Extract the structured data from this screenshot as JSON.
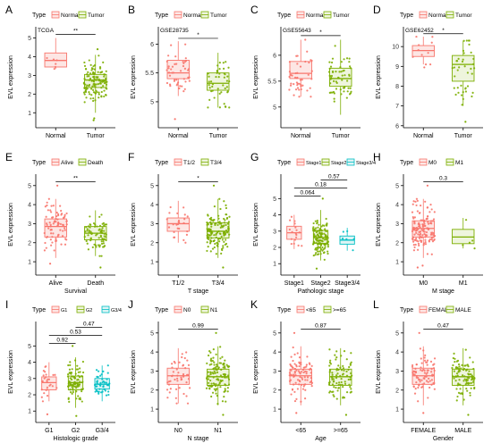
{
  "colors": {
    "red": "#F8766D",
    "green": "#7CAE00",
    "teal": "#00BFC4",
    "box_fill_red": "#FDE6E4",
    "box_fill_green": "#EEF5DD",
    "box_fill_teal": "#DDF4F5",
    "axis": "#000000"
  },
  "chart_data": [
    {
      "panel_letter": "A",
      "type": "box",
      "subtitle": "TCGA",
      "legend_title": "Type",
      "legend": [
        "Normal",
        "Tumor"
      ],
      "ylabel": "EVL expression",
      "xlabel": "",
      "categories": [
        "Normal",
        "Tumor"
      ],
      "yticks": [
        1,
        2,
        3,
        4,
        5
      ],
      "ylim": [
        0.2,
        5.6
      ],
      "colors": [
        "red",
        "green"
      ],
      "boxes": [
        {
          "min": 3.35,
          "q1": 3.45,
          "median": 3.8,
          "q3": 4.2,
          "max": 5.0,
          "n": 6,
          "outliers": []
        },
        {
          "min": 1.0,
          "q1": 2.35,
          "median": 2.75,
          "q3": 3.05,
          "max": 4.1,
          "n": 120,
          "outliers": [
            0.6,
            0.7,
            4.4
          ]
        }
      ],
      "comparisons": [
        {
          "pair": [
            0,
            1
          ],
          "label": "**",
          "y": 5.2
        }
      ]
    },
    {
      "panel_letter": "B",
      "type": "box",
      "subtitle": "GSE28735",
      "legend_title": "Type",
      "legend": [
        "Normal",
        "Tumor"
      ],
      "ylabel": "EVL expression",
      "xlabel": "",
      "categories": [
        "Normal",
        "Tumor"
      ],
      "yticks": [
        5.0,
        5.5,
        6.0
      ],
      "ylim": [
        4.55,
        6.3
      ],
      "colors": [
        "red",
        "green"
      ],
      "boxes": [
        {
          "min": 5.1,
          "q1": 5.4,
          "median": 5.5,
          "q3": 5.72,
          "max": 6.05,
          "n": 45,
          "outliers": [
            4.7
          ]
        },
        {
          "min": 4.9,
          "q1": 5.2,
          "median": 5.32,
          "q3": 5.5,
          "max": 5.85,
          "n": 45,
          "outliers": []
        }
      ],
      "comparisons": [
        {
          "pair": [
            0,
            1
          ],
          "label": "*",
          "y": 6.1
        }
      ]
    },
    {
      "panel_letter": "C",
      "type": "box",
      "subtitle": "GSE55643",
      "legend_title": "Type",
      "legend": [
        "Normal",
        "Tumor"
      ],
      "ylabel": "EVL expression",
      "xlabel": "",
      "categories": [
        "Normal",
        "Tumor"
      ],
      "yticks": [
        5.0,
        5.5,
        6.0
      ],
      "ylim": [
        4.6,
        6.55
      ],
      "colors": [
        "red",
        "green"
      ],
      "boxes": [
        {
          "min": 5.2,
          "q1": 5.55,
          "median": 5.65,
          "q3": 5.88,
          "max": 6.3,
          "n": 45,
          "outliers": []
        },
        {
          "min": 4.85,
          "q1": 5.4,
          "median": 5.55,
          "q3": 5.75,
          "max": 6.3,
          "n": 60,
          "outliers": []
        }
      ],
      "comparisons": [
        {
          "pair": [
            0,
            1
          ],
          "label": "*",
          "y": 6.38
        }
      ]
    },
    {
      "panel_letter": "D",
      "type": "box",
      "subtitle": "GSE62452",
      "legend_title": "Type",
      "legend": [
        "Normal",
        "Tumor"
      ],
      "ylabel": "EVL expression",
      "xlabel": "",
      "categories": [
        "Normal",
        "Tumor"
      ],
      "yticks": [
        6,
        7,
        8,
        9,
        10
      ],
      "ylim": [
        5.9,
        11.0
      ],
      "colors": [
        "red",
        "green"
      ],
      "boxes": [
        {
          "min": 9.1,
          "q1": 9.5,
          "median": 9.8,
          "q3": 10.05,
          "max": 10.5,
          "n": 10,
          "outliers": [
            8.95
          ]
        },
        {
          "min": 7.0,
          "q1": 8.25,
          "median": 9.1,
          "q3": 9.55,
          "max": 10.3,
          "n": 40,
          "outliers": [
            6.2
          ]
        }
      ],
      "comparisons": [
        {
          "pair": [
            0,
            1
          ],
          "label": "*",
          "y": 10.65
        }
      ]
    },
    {
      "panel_letter": "E",
      "type": "box",
      "subtitle": "",
      "legend_title": "Type",
      "legend": [
        "Alive",
        "Death"
      ],
      "ylabel": "EVL expression",
      "xlabel": "Survival",
      "categories": [
        "Alive",
        "Death"
      ],
      "yticks": [
        1,
        2,
        3,
        4,
        5
      ],
      "ylim": [
        0.3,
        5.6
      ],
      "colors": [
        "red",
        "green"
      ],
      "boxes": [
        {
          "min": 1.2,
          "q1": 2.3,
          "median": 2.85,
          "q3": 3.25,
          "max": 4.3,
          "n": 80,
          "outliers": [
            0.9,
            5.0
          ]
        },
        {
          "min": 1.3,
          "q1": 2.15,
          "median": 2.5,
          "q3": 2.85,
          "max": 3.7,
          "n": 75,
          "outliers": [
            0.7
          ]
        }
      ],
      "comparisons": [
        {
          "pair": [
            0,
            1
          ],
          "label": "**",
          "y": 5.2
        }
      ]
    },
    {
      "panel_letter": "F",
      "type": "box",
      "subtitle": "",
      "legend_title": "Type",
      "legend": [
        "T1/2",
        "T3/4"
      ],
      "ylabel": "EVL expression",
      "xlabel": "T stage",
      "categories": [
        "T1/2",
        "T3/4"
      ],
      "yticks": [
        1,
        2,
        3,
        4,
        5
      ],
      "ylim": [
        0.3,
        5.6
      ],
      "colors": [
        "red",
        "green"
      ],
      "boxes": [
        {
          "min": 2.0,
          "q1": 2.6,
          "median": 3.0,
          "q3": 3.3,
          "max": 4.2,
          "n": 25,
          "outliers": []
        },
        {
          "min": 1.2,
          "q1": 2.25,
          "median": 2.6,
          "q3": 3.05,
          "max": 4.3,
          "n": 130,
          "outliers": [
            0.7,
            5.0
          ]
        }
      ],
      "comparisons": [
        {
          "pair": [
            0,
            1
          ],
          "label": "*",
          "y": 5.2
        }
      ]
    },
    {
      "panel_letter": "G",
      "type": "box",
      "subtitle": "",
      "legend_title": "Type",
      "legend": [
        "Stage1",
        "Stage2",
        "Stage3/4"
      ],
      "ylabel": "EVL expression",
      "xlabel": "Pathologic stage",
      "categories": [
        "Stage1",
        "Stage2",
        "Stage3/4"
      ],
      "yticks": [
        1,
        2,
        3,
        4,
        5
      ],
      "ylim": [
        0.3,
        6.5
      ],
      "colors": [
        "red",
        "green",
        "teal"
      ],
      "boxes": [
        {
          "min": 1.9,
          "q1": 2.5,
          "median": 2.9,
          "q3": 3.3,
          "max": 4.0,
          "n": 18,
          "outliers": []
        },
        {
          "min": 1.2,
          "q1": 2.25,
          "median": 2.6,
          "q3": 3.05,
          "max": 4.3,
          "n": 130,
          "outliers": [
            0.7,
            5.0
          ]
        },
        {
          "min": 1.8,
          "q1": 2.2,
          "median": 2.45,
          "q3": 2.7,
          "max": 3.2,
          "n": 6,
          "outliers": []
        }
      ],
      "comparisons": [
        {
          "pair": [
            0,
            1
          ],
          "label": "0.064",
          "y": 5.15
        },
        {
          "pair": [
            0,
            2
          ],
          "label": "0.18",
          "y": 5.65
        },
        {
          "pair": [
            1,
            2
          ],
          "label": "0.57",
          "y": 6.15
        }
      ]
    },
    {
      "panel_letter": "H",
      "type": "box",
      "subtitle": "",
      "legend_title": "Type",
      "legend": [
        "M0",
        "M1"
      ],
      "ylabel": "EVL expression",
      "xlabel": "M stage",
      "categories": [
        "M0",
        "M1"
      ],
      "yticks": [
        1,
        2,
        3,
        4,
        5
      ],
      "ylim": [
        0.3,
        5.6
      ],
      "colors": [
        "red",
        "green"
      ],
      "boxes": [
        {
          "min": 1.2,
          "q1": 2.3,
          "median": 2.75,
          "q3": 3.15,
          "max": 4.3,
          "n": 140,
          "outliers": [
            0.7,
            0.8,
            5.0
          ]
        },
        {
          "min": 1.7,
          "q1": 1.95,
          "median": 2.3,
          "q3": 2.7,
          "max": 3.3,
          "n": 5,
          "outliers": []
        }
      ],
      "comparisons": [
        {
          "pair": [
            0,
            1
          ],
          "label": "0.3",
          "y": 5.2
        }
      ]
    },
    {
      "panel_letter": "I",
      "type": "box",
      "subtitle": "",
      "legend_title": "Type",
      "legend": [
        "G1",
        "G2",
        "G3/4"
      ],
      "ylabel": "EVL expression",
      "xlabel": "Histologic grade",
      "categories": [
        "G1",
        "G2",
        "G3/4"
      ],
      "yticks": [
        1,
        2,
        3,
        4,
        5
      ],
      "ylim": [
        0.3,
        6.5
      ],
      "colors": [
        "red",
        "green",
        "teal"
      ],
      "boxes": [
        {
          "min": 1.6,
          "q1": 2.3,
          "median": 2.75,
          "q3": 3.1,
          "max": 4.0,
          "n": 28,
          "outliers": [
            0.8
          ]
        },
        {
          "min": 1.2,
          "q1": 2.3,
          "median": 2.75,
          "q3": 3.15,
          "max": 4.3,
          "n": 90,
          "outliers": [
            0.7,
            5.0
          ]
        },
        {
          "min": 1.6,
          "q1": 2.35,
          "median": 2.65,
          "q3": 3.0,
          "max": 3.8,
          "n": 45,
          "outliers": []
        }
      ],
      "comparisons": [
        {
          "pair": [
            0,
            1
          ],
          "label": "0.92",
          "y": 5.15
        },
        {
          "pair": [
            0,
            2
          ],
          "label": "0.53",
          "y": 5.65
        },
        {
          "pair": [
            1,
            2
          ],
          "label": "0.47",
          "y": 6.15
        }
      ]
    },
    {
      "panel_letter": "J",
      "type": "box",
      "subtitle": "",
      "legend_title": "Type",
      "legend": [
        "N0",
        "N1"
      ],
      "ylabel": "EVL expression",
      "xlabel": "N stage",
      "categories": [
        "N0",
        "N1"
      ],
      "yticks": [
        1,
        2,
        3,
        4,
        5
      ],
      "ylim": [
        0.3,
        5.6
      ],
      "colors": [
        "red",
        "green"
      ],
      "boxes": [
        {
          "min": 1.3,
          "q1": 2.3,
          "median": 2.75,
          "q3": 3.15,
          "max": 4.2,
          "n": 50,
          "outliers": []
        },
        {
          "min": 1.2,
          "q1": 2.25,
          "median": 2.7,
          "q3": 3.1,
          "max": 4.3,
          "n": 120,
          "outliers": [
            0.7,
            5.0
          ]
        }
      ],
      "comparisons": [
        {
          "pair": [
            0,
            1
          ],
          "label": "0.99",
          "y": 5.2
        }
      ]
    },
    {
      "panel_letter": "K",
      "type": "box",
      "subtitle": "",
      "legend_title": "Type",
      "legend": [
        "<65",
        ">=65"
      ],
      "ylabel": "EVL expression",
      "xlabel": "Age",
      "categories": [
        "<65",
        ">=65"
      ],
      "yticks": [
        1,
        2,
        3,
        4,
        5
      ],
      "ylim": [
        0.3,
        5.6
      ],
      "colors": [
        "red",
        "green"
      ],
      "boxes": [
        {
          "min": 1.2,
          "q1": 2.3,
          "median": 2.75,
          "q3": 3.1,
          "max": 4.3,
          "n": 90,
          "outliers": [
            0.8,
            5.0
          ]
        },
        {
          "min": 1.2,
          "q1": 2.25,
          "median": 2.7,
          "q3": 3.1,
          "max": 4.2,
          "n": 85,
          "outliers": [
            0.7
          ]
        }
      ],
      "comparisons": [
        {
          "pair": [
            0,
            1
          ],
          "label": "0.87",
          "y": 5.2
        }
      ]
    },
    {
      "panel_letter": "L",
      "type": "box",
      "subtitle": "",
      "legend_title": "Type",
      "legend": [
        "FEMALE",
        "MALE"
      ],
      "ylabel": "EVL expression",
      "xlabel": "Gender",
      "categories": [
        "FEMALE",
        "MALE"
      ],
      "yticks": [
        1,
        2,
        3,
        4,
        5
      ],
      "ylim": [
        0.3,
        5.6
      ],
      "colors": [
        "red",
        "green"
      ],
      "boxes": [
        {
          "min": 1.2,
          "q1": 2.3,
          "median": 2.75,
          "q3": 3.15,
          "max": 4.3,
          "n": 80,
          "outliers": [
            0.8,
            5.0
          ]
        },
        {
          "min": 1.2,
          "q1": 2.25,
          "median": 2.7,
          "q3": 3.1,
          "max": 4.2,
          "n": 95,
          "outliers": [
            0.7
          ]
        }
      ],
      "comparisons": [
        {
          "pair": [
            0,
            1
          ],
          "label": "0.47",
          "y": 5.2
        }
      ]
    }
  ]
}
